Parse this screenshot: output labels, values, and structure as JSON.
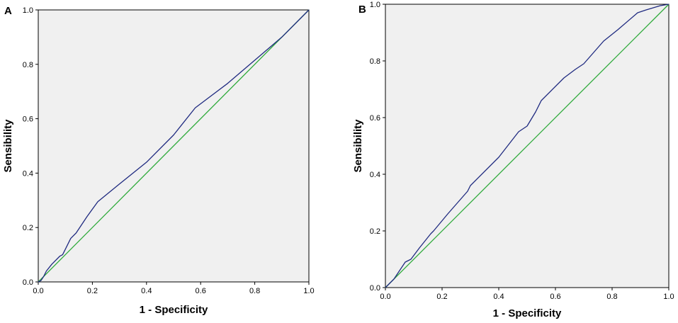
{
  "chart_data": [
    {
      "type": "line",
      "panel_label": "A",
      "xlabel": "1 - Specificity",
      "ylabel": "Sensibility",
      "xlim": [
        0,
        1
      ],
      "ylim": [
        0,
        1
      ],
      "x_ticks": [
        "0.0",
        "0.2",
        "0.4",
        "0.6",
        "0.8",
        "1.0"
      ],
      "y_ticks": [
        "0.0",
        "0.2",
        "0.4",
        "0.6",
        "0.8",
        "1.0"
      ],
      "grid": false,
      "plot_background": "#f0f0f0",
      "series": [
        {
          "color": "#1f2a80",
          "points": [
            [
              0,
              0
            ],
            [
              0.01,
              0.005
            ],
            [
              0.02,
              0.02
            ],
            [
              0.03,
              0.04
            ],
            [
              0.05,
              0.065
            ],
            [
              0.08,
              0.095
            ],
            [
              0.09,
              0.1
            ],
            [
              0.1,
              0.12
            ],
            [
              0.12,
              0.16
            ],
            [
              0.14,
              0.18
            ],
            [
              0.18,
              0.24
            ],
            [
              0.22,
              0.295
            ],
            [
              0.3,
              0.36
            ],
            [
              0.4,
              0.44
            ],
            [
              0.5,
              0.54
            ],
            [
              0.58,
              0.64
            ],
            [
              0.7,
              0.73
            ],
            [
              0.8,
              0.815
            ],
            [
              0.9,
              0.9
            ],
            [
              1,
              1
            ]
          ]
        },
        {
          "color": "#2eaa3a",
          "points": [
            [
              0,
              0
            ],
            [
              1,
              1
            ]
          ]
        }
      ]
    },
    {
      "type": "line",
      "panel_label": "B",
      "xlabel": "1 - Specificity",
      "ylabel": "Sensibility",
      "xlim": [
        0,
        1
      ],
      "ylim": [
        0,
        1
      ],
      "x_ticks": [
        "0.0",
        "0.2",
        "0.4",
        "0.6",
        "0.8",
        "1.0"
      ],
      "y_ticks": [
        "0.0",
        "0.2",
        "0.4",
        "0.6",
        "0.8",
        "1.0"
      ],
      "grid": false,
      "plot_background": "#f0f0f0",
      "series": [
        {
          "color": "#1f2a80",
          "points": [
            [
              0,
              0
            ],
            [
              0.01,
              0.01
            ],
            [
              0.03,
              0.03
            ],
            [
              0.05,
              0.06
            ],
            [
              0.07,
              0.09
            ],
            [
              0.09,
              0.1
            ],
            [
              0.12,
              0.14
            ],
            [
              0.16,
              0.19
            ],
            [
              0.17,
              0.2
            ],
            [
              0.22,
              0.26
            ],
            [
              0.29,
              0.34
            ],
            [
              0.3,
              0.36
            ],
            [
              0.4,
              0.46
            ],
            [
              0.47,
              0.55
            ],
            [
              0.5,
              0.57
            ],
            [
              0.53,
              0.62
            ],
            [
              0.55,
              0.66
            ],
            [
              0.63,
              0.74
            ],
            [
              0.67,
              0.77
            ],
            [
              0.7,
              0.79
            ],
            [
              0.77,
              0.87
            ],
            [
              0.82,
              0.91
            ],
            [
              0.89,
              0.97
            ],
            [
              0.92,
              0.98
            ],
            [
              0.97,
              0.995
            ],
            [
              1,
              1
            ]
          ]
        },
        {
          "color": "#2eaa3a",
          "points": [
            [
              0,
              0
            ],
            [
              1,
              1
            ]
          ]
        }
      ]
    }
  ]
}
